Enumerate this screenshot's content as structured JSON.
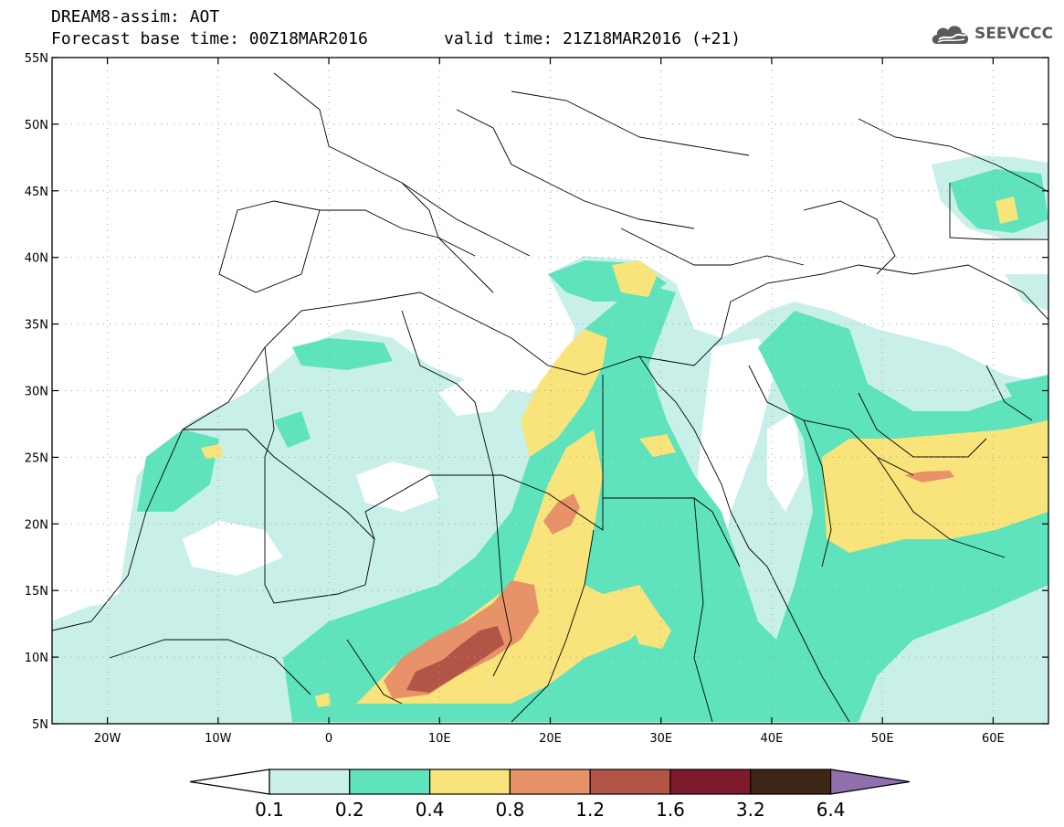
{
  "header": {
    "title": "DREAM8-assim: AOT",
    "forecast": "Forecast base time: 00Z18MAR2016",
    "valid": "valid time: 21Z18MAR2016 (+21)"
  },
  "logo": {
    "text": "SEEVCCC",
    "icon": "cloud-icon"
  },
  "map": {
    "lon_range": [
      -25,
      65
    ],
    "lat_range": [
      5,
      55
    ],
    "lat_ticks": [
      {
        "value": 55,
        "label": "55N"
      },
      {
        "value": 50,
        "label": "50N"
      },
      {
        "value": 45,
        "label": "45N"
      },
      {
        "value": 40,
        "label": "40N"
      },
      {
        "value": 35,
        "label": "35N"
      },
      {
        "value": 30,
        "label": "30N"
      },
      {
        "value": 25,
        "label": "25N"
      },
      {
        "value": 20,
        "label": "20N"
      },
      {
        "value": 15,
        "label": "15N"
      },
      {
        "value": 10,
        "label": "10N"
      },
      {
        "value": 5,
        "label": "5N"
      }
    ],
    "lon_ticks": [
      {
        "value": -20,
        "label": "20W"
      },
      {
        "value": -10,
        "label": "10W"
      },
      {
        "value": 0,
        "label": "0"
      },
      {
        "value": 10,
        "label": "10E"
      },
      {
        "value": 20,
        "label": "20E"
      },
      {
        "value": 30,
        "label": "30E"
      },
      {
        "value": 40,
        "label": "40E"
      },
      {
        "value": 50,
        "label": "50E"
      },
      {
        "value": 60,
        "label": "60E"
      }
    ],
    "grid": "dotted"
  },
  "colorbar": {
    "labels": [
      "0.1",
      "0.2",
      "0.4",
      "0.8",
      "1.2",
      "1.6",
      "3.2",
      "6.4"
    ],
    "colors": [
      "#c8f0e8",
      "#5ee3bc",
      "#f8e47a",
      "#e8926a",
      "#b25547",
      "#7d1a2b",
      "#3e2616",
      "#8f70ad"
    ]
  }
}
